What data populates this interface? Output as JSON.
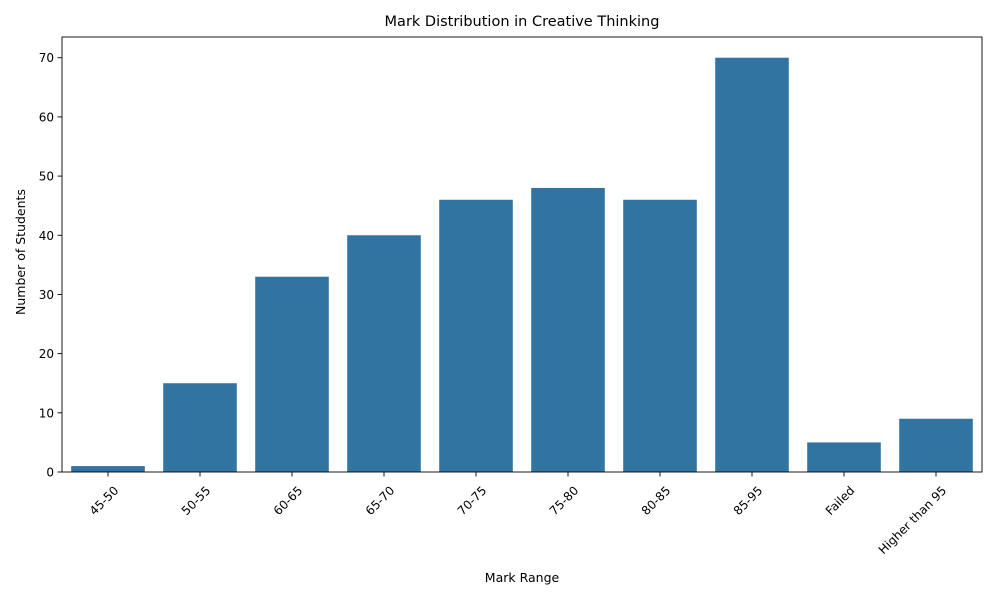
{
  "chart_data": {
    "type": "bar",
    "title": "Mark Distribution in Creative Thinking",
    "xlabel": "Mark Range",
    "ylabel": "Number of Students",
    "categories": [
      "45-50",
      "50-55",
      "60-65",
      "65-70",
      "70-75",
      "75-80",
      "80-85",
      "85-95",
      "Failed",
      "Higher than 95"
    ],
    "values": [
      1,
      15,
      33,
      40,
      46,
      48,
      46,
      70,
      5,
      9
    ],
    "ylim": [
      0,
      73.5
    ],
    "yticks": [
      0,
      10,
      20,
      30,
      40,
      50,
      60,
      70
    ],
    "grid": false,
    "legend": "none",
    "bar_color": "#3274a1"
  }
}
